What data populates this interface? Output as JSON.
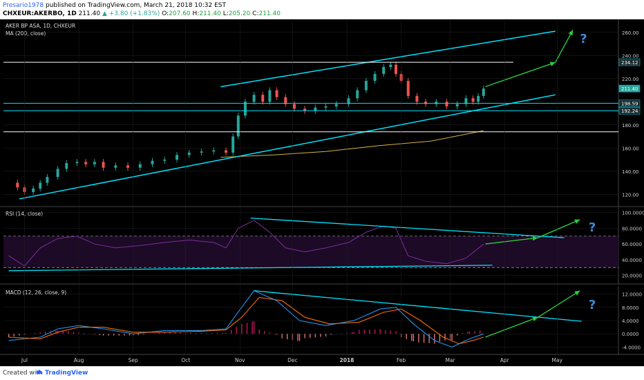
{
  "header": {
    "author": "Presario1978",
    "published_text": "published on TradingView.com, March 21, 2018 10:32 EST",
    "symbol_line": "CHXEUR:AKERBO, 1D",
    "last_price": "211.40",
    "change": "▲ +3.80 (+1.83%)",
    "ohlc": [
      {
        "key": "O:",
        "value": "207.60"
      },
      {
        "key": "H:",
        "value": "211.40"
      },
      {
        "key": "L:",
        "value": "205.20"
      },
      {
        "key": "C:",
        "value": "211.40"
      }
    ]
  },
  "footer": {
    "created_with": "Created with",
    "brand": "TradingView"
  },
  "chart_data": [
    {
      "type": "line",
      "panel": "price",
      "title": "AKER BP ASA, 1D, CHXEUR",
      "indicator": "MA (200, close)",
      "ylim": [
        110,
        270
      ],
      "yticks": [
        "120.00",
        "140.00",
        "160.00",
        "180.00",
        "200.00",
        "220.00",
        "240.00",
        "260.00"
      ],
      "price_labels": [
        {
          "value": "234.12",
          "y": 234.12
        },
        {
          "value": "211.40",
          "y": 211.4
        },
        {
          "value": "198.59",
          "y": 198.59
        },
        {
          "value": "192.24",
          "y": 192.24
        }
      ],
      "close_series": [
        {
          "date": "2017-06-22",
          "close": 130
        },
        {
          "date": "2017-06-27",
          "close": 126
        },
        {
          "date": "2017-07-01",
          "close": 122
        },
        {
          "date": "2017-07-06",
          "close": 125
        },
        {
          "date": "2017-07-10",
          "close": 130
        },
        {
          "date": "2017-07-14",
          "close": 135
        },
        {
          "date": "2017-07-20",
          "close": 142
        },
        {
          "date": "2017-07-25",
          "close": 147
        },
        {
          "date": "2017-07-31",
          "close": 148
        },
        {
          "date": "2017-08-05",
          "close": 146
        },
        {
          "date": "2017-08-10",
          "close": 148
        },
        {
          "date": "2017-08-15",
          "close": 143
        },
        {
          "date": "2017-08-22",
          "close": 145
        },
        {
          "date": "2017-08-29",
          "close": 143
        },
        {
          "date": "2017-09-05",
          "close": 146
        },
        {
          "date": "2017-09-12",
          "close": 149
        },
        {
          "date": "2017-09-19",
          "close": 150
        },
        {
          "date": "2017-09-26",
          "close": 154
        },
        {
          "date": "2017-10-03",
          "close": 156
        },
        {
          "date": "2017-10-10",
          "close": 157
        },
        {
          "date": "2017-10-17",
          "close": 158
        },
        {
          "date": "2017-10-24",
          "close": 156
        },
        {
          "date": "2017-10-28",
          "close": 170
        },
        {
          "date": "2017-10-31",
          "close": 188
        },
        {
          "date": "2017-11-04",
          "close": 200
        },
        {
          "date": "2017-11-09",
          "close": 206
        },
        {
          "date": "2017-11-14",
          "close": 200
        },
        {
          "date": "2017-11-18",
          "close": 210
        },
        {
          "date": "2017-11-22",
          "close": 204
        },
        {
          "date": "2017-11-27",
          "close": 198
        },
        {
          "date": "2017-12-02",
          "close": 194
        },
        {
          "date": "2017-12-08",
          "close": 192
        },
        {
          "date": "2017-12-14",
          "close": 195
        },
        {
          "date": "2017-12-20",
          "close": 196
        },
        {
          "date": "2017-12-26",
          "close": 198
        },
        {
          "date": "2018-01-02",
          "close": 203
        },
        {
          "date": "2018-01-07",
          "close": 210
        },
        {
          "date": "2018-01-12",
          "close": 218
        },
        {
          "date": "2018-01-17",
          "close": 224
        },
        {
          "date": "2018-01-22",
          "close": 230
        },
        {
          "date": "2018-01-26",
          "close": 232
        },
        {
          "date": "2018-01-29",
          "close": 224
        },
        {
          "date": "2018-02-01",
          "close": 218
        },
        {
          "date": "2018-02-05",
          "close": 205
        },
        {
          "date": "2018-02-10",
          "close": 200
        },
        {
          "date": "2018-02-15",
          "close": 198
        },
        {
          "date": "2018-02-21",
          "close": 200
        },
        {
          "date": "2018-02-27",
          "close": 196
        },
        {
          "date": "2018-03-05",
          "close": 198
        },
        {
          "date": "2018-03-10",
          "close": 203
        },
        {
          "date": "2018-03-14",
          "close": 200
        },
        {
          "date": "2018-03-17",
          "close": 205
        },
        {
          "date": "2018-03-20",
          "close": 211.4
        }
      ],
      "ma200": [
        {
          "date": "2017-10-21",
          "value": 152
        },
        {
          "date": "2017-11-20",
          "value": 154
        },
        {
          "date": "2017-12-20",
          "value": 157
        },
        {
          "date": "2018-01-19",
          "value": 162
        },
        {
          "date": "2018-02-18",
          "value": 166
        },
        {
          "date": "2018-03-20",
          "value": 175
        }
      ],
      "lines": [
        {
          "name": "upper-channel",
          "color": "#00e5ff",
          "from": {
            "date": "2017-10-21",
            "value": 213
          },
          "to": {
            "date": "2018-04-30",
            "value": 261
          }
        },
        {
          "name": "lower-channel",
          "color": "#00e5ff",
          "from": {
            "date": "2017-06-28",
            "value": 116
          },
          "to": {
            "date": "2018-04-30",
            "value": 206
          }
        },
        {
          "name": "resistance-234",
          "color": "#ffffff",
          "from": {
            "date": "2017-06-19",
            "value": 234.12
          },
          "to": {
            "date": "2018-04-06",
            "value": 234.12
          }
        },
        {
          "name": "support-198",
          "color": "#00e5ff",
          "from": {
            "date": "2017-06-19",
            "value": 198.59
          },
          "to": {
            "date": "2018-06-05",
            "value": 198.59
          }
        },
        {
          "name": "support-192",
          "color": "#00e5ff",
          "from": {
            "date": "2017-06-19",
            "value": 192.24
          },
          "to": {
            "date": "2018-06-05",
            "value": 192.24
          }
        },
        {
          "name": "level-174",
          "color": "#ffffff",
          "from": {
            "date": "2017-06-19",
            "value": 174
          },
          "to": {
            "date": "2018-06-05",
            "value": 174
          }
        }
      ],
      "arrows": [
        {
          "color": "#2ecc40",
          "from": {
            "date": "2018-03-21",
            "value": 213
          },
          "to": {
            "date": "2018-04-30",
            "value": 234
          }
        },
        {
          "color": "#2ecc40",
          "from": {
            "date": "2018-04-30",
            "value": 234
          },
          "to": {
            "date": "2018-05-10",
            "value": 262
          }
        }
      ],
      "annotation": {
        "text": "?",
        "date": "2018-05-14",
        "value": 255,
        "color": "#3d8bd6"
      }
    },
    {
      "type": "line",
      "panel": "rsi",
      "title": "RSI (14, close)",
      "ylim": [
        10,
        105
      ],
      "yticks": [
        "20.0000",
        "40.0000",
        "60.0000",
        "80.0000",
        "100.0000"
      ],
      "bands": {
        "upper": 70,
        "lower": 30
      },
      "series": [
        {
          "date": "2017-06-22",
          "value": 45
        },
        {
          "date": "2017-07-01",
          "value": 32
        },
        {
          "date": "2017-07-10",
          "value": 55
        },
        {
          "date": "2017-07-20",
          "value": 67
        },
        {
          "date": "2017-07-31",
          "value": 70
        },
        {
          "date": "2017-08-10",
          "value": 60
        },
        {
          "date": "2017-08-22",
          "value": 55
        },
        {
          "date": "2017-09-05",
          "value": 58
        },
        {
          "date": "2017-09-19",
          "value": 62
        },
        {
          "date": "2017-10-03",
          "value": 65
        },
        {
          "date": "2017-10-17",
          "value": 62
        },
        {
          "date": "2017-10-24",
          "value": 55
        },
        {
          "date": "2017-10-31",
          "value": 80
        },
        {
          "date": "2017-11-09",
          "value": 90
        },
        {
          "date": "2017-11-18",
          "value": 75
        },
        {
          "date": "2017-11-27",
          "value": 55
        },
        {
          "date": "2017-12-08",
          "value": 50
        },
        {
          "date": "2017-12-20",
          "value": 55
        },
        {
          "date": "2018-01-02",
          "value": 62
        },
        {
          "date": "2018-01-12",
          "value": 75
        },
        {
          "date": "2018-01-22",
          "value": 83
        },
        {
          "date": "2018-01-29",
          "value": 80
        },
        {
          "date": "2018-02-05",
          "value": 45
        },
        {
          "date": "2018-02-15",
          "value": 38
        },
        {
          "date": "2018-02-27",
          "value": 35
        },
        {
          "date": "2018-03-10",
          "value": 42
        },
        {
          "date": "2018-03-20",
          "value": 60
        }
      ],
      "lines": [
        {
          "name": "rsi-upper-trend",
          "color": "#00e5ff",
          "from": {
            "date": "2017-11-07",
            "value": 93
          },
          "to": {
            "date": "2018-05-05",
            "value": 68
          }
        },
        {
          "name": "rsi-lower-trend",
          "color": "#00e5ff",
          "from": {
            "date": "2017-06-22",
            "value": 26
          },
          "to": {
            "date": "2018-03-25",
            "value": 33
          }
        }
      ],
      "arrows": [
        {
          "color": "#2ecc40",
          "from": {
            "date": "2018-03-21",
            "value": 60
          },
          "to": {
            "date": "2018-04-20",
            "value": 68
          }
        },
        {
          "color": "#2ecc40",
          "from": {
            "date": "2018-04-20",
            "value": 68
          },
          "to": {
            "date": "2018-05-14",
            "value": 91
          }
        }
      ],
      "annotation": {
        "text": "?",
        "date": "2018-05-19",
        "value": 82,
        "color": "#3d8bd6"
      }
    },
    {
      "type": "bar",
      "panel": "macd",
      "title": "MACD (12, 26, close, 9)",
      "ylim": [
        -6,
        14
      ],
      "yticks": [
        "-4.0000",
        "0.0000",
        "4.0000",
        "8.0000",
        "12.0000"
      ],
      "macd_line": [
        {
          "date": "2017-06-22",
          "value": -2
        },
        {
          "date": "2017-07-10",
          "value": -1
        },
        {
          "date": "2017-07-20",
          "value": 1.5
        },
        {
          "date": "2017-08-01",
          "value": 2.5
        },
        {
          "date": "2017-08-15",
          "value": 1.5
        },
        {
          "date": "2017-09-01",
          "value": 0
        },
        {
          "date": "2017-09-19",
          "value": 1.0
        },
        {
          "date": "2017-10-10",
          "value": 1.0
        },
        {
          "date": "2017-10-24",
          "value": 1.5
        },
        {
          "date": "2017-11-02",
          "value": 8
        },
        {
          "date": "2017-11-09",
          "value": 13
        },
        {
          "date": "2017-11-22",
          "value": 10
        },
        {
          "date": "2017-12-05",
          "value": 4
        },
        {
          "date": "2017-12-20",
          "value": 2.5
        },
        {
          "date": "2018-01-05",
          "value": 4
        },
        {
          "date": "2018-01-20",
          "value": 7.5
        },
        {
          "date": "2018-01-29",
          "value": 8
        },
        {
          "date": "2018-02-08",
          "value": 3
        },
        {
          "date": "2018-02-20",
          "value": -2
        },
        {
          "date": "2018-03-02",
          "value": -4
        },
        {
          "date": "2018-03-12",
          "value": -1.5
        },
        {
          "date": "2018-03-20",
          "value": 0
        }
      ],
      "signal_line": [
        {
          "date": "2017-06-22",
          "value": -1
        },
        {
          "date": "2017-07-10",
          "value": -1.5
        },
        {
          "date": "2017-07-20",
          "value": 0.5
        },
        {
          "date": "2017-08-01",
          "value": 2
        },
        {
          "date": "2017-08-15",
          "value": 2
        },
        {
          "date": "2017-09-01",
          "value": 0.5
        },
        {
          "date": "2017-09-19",
          "value": 0.5
        },
        {
          "date": "2017-10-10",
          "value": 0.8
        },
        {
          "date": "2017-10-24",
          "value": 1.2
        },
        {
          "date": "2017-11-02",
          "value": 5
        },
        {
          "date": "2017-11-12",
          "value": 11
        },
        {
          "date": "2017-11-25",
          "value": 10
        },
        {
          "date": "2017-12-08",
          "value": 5
        },
        {
          "date": "2017-12-22",
          "value": 3
        },
        {
          "date": "2018-01-08",
          "value": 3.5
        },
        {
          "date": "2018-01-22",
          "value": 6.5
        },
        {
          "date": "2018-02-01",
          "value": 7.5
        },
        {
          "date": "2018-02-12",
          "value": 4
        },
        {
          "date": "2018-02-25",
          "value": -1
        },
        {
          "date": "2018-03-06",
          "value": -3
        },
        {
          "date": "2018-03-14",
          "value": -2
        },
        {
          "date": "2018-03-20",
          "value": -1
        }
      ],
      "lines": [
        {
          "name": "macd-trend",
          "color": "#00e5ff",
          "from": {
            "date": "2017-11-09",
            "value": 13
          },
          "to": {
            "date": "2018-05-15",
            "value": 3.8
          }
        }
      ],
      "arrows": [
        {
          "color": "#2ecc40",
          "from": {
            "date": "2018-03-21",
            "value": -1
          },
          "to": {
            "date": "2018-04-20",
            "value": 5
          }
        },
        {
          "color": "#2ecc40",
          "from": {
            "date": "2018-04-20",
            "value": 5
          },
          "to": {
            "date": "2018-05-14",
            "value": 13
          }
        }
      ],
      "annotation": {
        "text": "?",
        "date": "2018-05-19",
        "value": 9,
        "color": "#3d8bd6"
      }
    }
  ],
  "x_axis": {
    "ticks": [
      {
        "label": "Jul",
        "date": "2017-07-01"
      },
      {
        "label": "Aug",
        "date": "2017-08-01"
      },
      {
        "label": "Sep",
        "date": "2017-09-01"
      },
      {
        "label": "Oct",
        "date": "2017-10-01"
      },
      {
        "label": "Nov",
        "date": "2017-11-01"
      },
      {
        "label": "Dec",
        "date": "2017-12-01"
      },
      {
        "label": "2018",
        "date": "2018-01-01"
      },
      {
        "label": "Feb",
        "date": "2018-02-01"
      },
      {
        "label": "Mar",
        "date": "2018-03-01"
      },
      {
        "label": "Apr",
        "date": "2018-04-01"
      },
      {
        "label": "May",
        "date": "2018-05-01"
      }
    ]
  },
  "colors": {
    "background": "#000000",
    "up": "#26a69a",
    "down": "#ef5350",
    "ma": "#d8b440",
    "rsi": "#7b2fa0",
    "rsi_band": "#1d0a26",
    "macd": "#2196f3",
    "signal": "#ff6d00",
    "histogram": "#c2185b",
    "grid": "#222222",
    "axis_text": "#cccccc"
  }
}
